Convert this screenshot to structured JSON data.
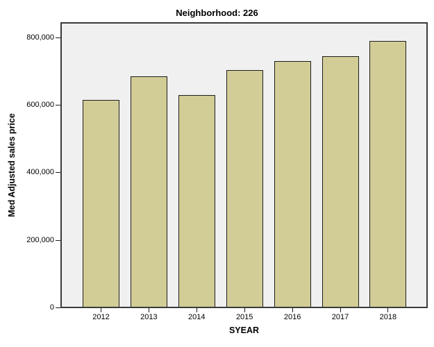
{
  "chart_data": {
    "type": "bar",
    "title": "Neighborhood: 226",
    "xlabel": "SYEAR",
    "ylabel": "Med Adjusted sales price",
    "categories": [
      "2012",
      "2013",
      "2014",
      "2015",
      "2016",
      "2017",
      "2018"
    ],
    "values": [
      613000,
      683000,
      628000,
      701000,
      727000,
      742000,
      788000
    ],
    "yticks": [
      {
        "value": 0,
        "label": "0"
      },
      {
        "value": 200000,
        "label": "200,000"
      },
      {
        "value": 400000,
        "label": "400,000"
      },
      {
        "value": 600000,
        "label": "600,000"
      },
      {
        "value": 800000,
        "label": "800,000"
      }
    ],
    "ylim": [
      0,
      841000
    ],
    "grid": false,
    "legend_position": "none",
    "colors": {
      "bar_fill": "#d2cd96",
      "bar_border": "#1c1c1c",
      "plot_background": "#f0f0f0",
      "plot_border": "#3a3a3a",
      "page_background": "#ffffff",
      "text": "#000000"
    }
  }
}
